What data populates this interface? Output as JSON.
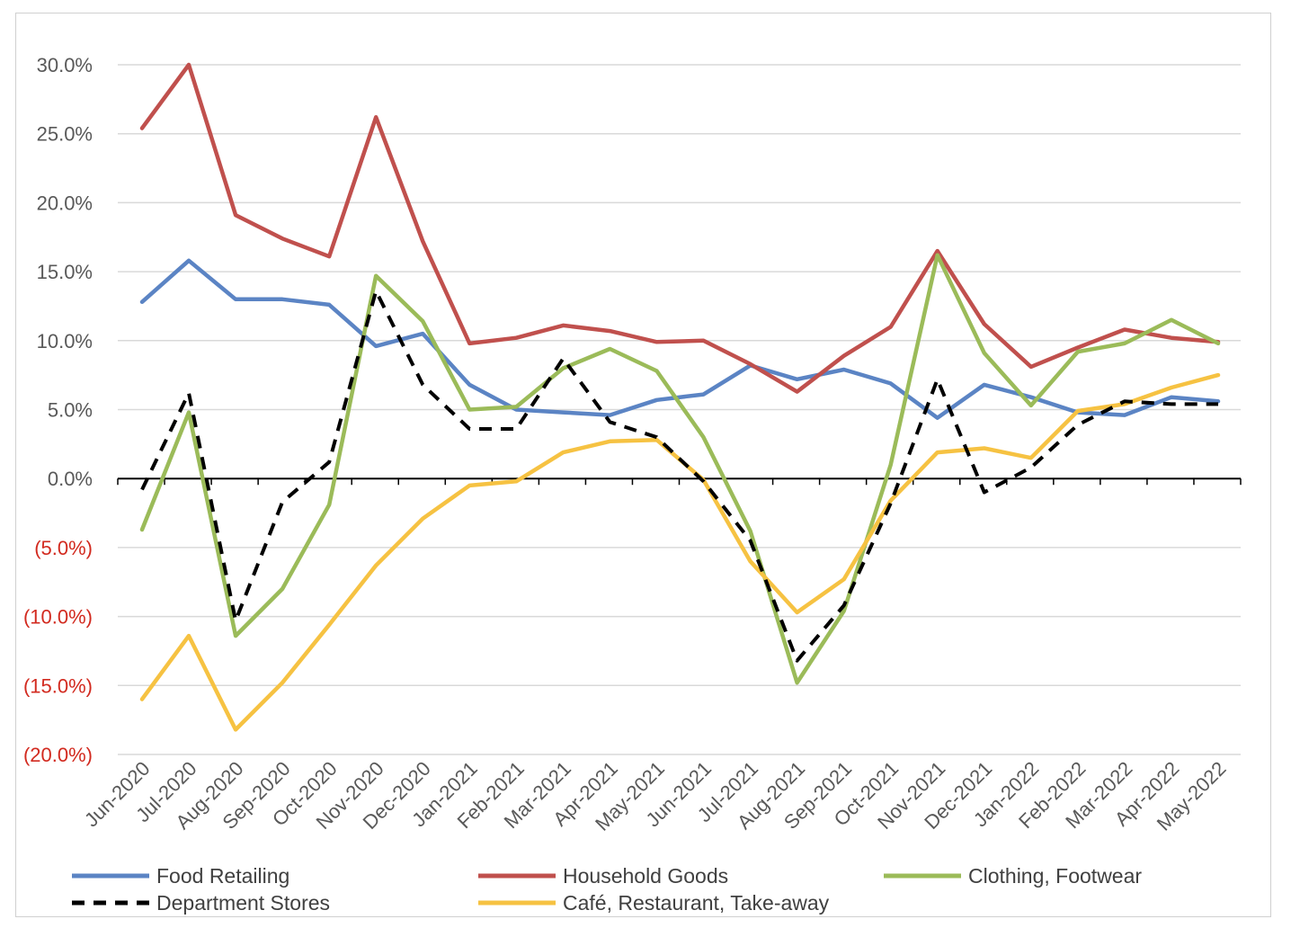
{
  "chart_data": {
    "type": "line",
    "title": "",
    "xlabel": "",
    "ylabel": "",
    "ylim": [
      -0.2,
      0.3
    ],
    "y_ticks": [
      0.3,
      0.25,
      0.2,
      0.15,
      0.1,
      0.05,
      0.0,
      -0.05,
      -0.1,
      -0.15,
      -0.2
    ],
    "y_tick_labels": [
      "30.0%",
      "25.0%",
      "20.0%",
      "15.0%",
      "10.0%",
      "5.0%",
      "0.0%",
      "(5.0%)",
      "(10.0%)",
      "(15.0%)",
      "(20.0%)"
    ],
    "negative_tick_color": "#d22a1f",
    "grid": true,
    "legend_position": "bottom",
    "categories": [
      "Jun-2020",
      "Jul-2020",
      "Aug-2020",
      "Sep-2020",
      "Oct-2020",
      "Nov-2020",
      "Dec-2020",
      "Jan-2021",
      "Feb-2021",
      "Mar-2021",
      "Apr-2021",
      "May-2021",
      "Jun-2021",
      "Jul-2021",
      "Aug-2021",
      "Sep-2021",
      "Oct-2021",
      "Nov-2021",
      "Dec-2021",
      "Jan-2022",
      "Feb-2022",
      "Mar-2022",
      "Apr-2022",
      "May-2022"
    ],
    "series": [
      {
        "name": "Food Retailing",
        "color": "#5b84c4",
        "dashed": false,
        "values": [
          0.128,
          0.158,
          0.13,
          0.13,
          0.126,
          0.096,
          0.105,
          0.068,
          0.05,
          0.048,
          0.046,
          0.057,
          0.061,
          0.082,
          0.072,
          0.079,
          0.069,
          0.044,
          0.068,
          0.059,
          0.048,
          0.046,
          0.059,
          0.056
        ]
      },
      {
        "name": "Household Goods",
        "color": "#c0504d",
        "dashed": false,
        "values": [
          0.254,
          0.3,
          0.191,
          0.174,
          0.161,
          0.262,
          0.172,
          0.098,
          0.102,
          0.111,
          0.107,
          0.099,
          0.1,
          0.083,
          0.063,
          0.089,
          0.11,
          0.165,
          0.112,
          0.081,
          0.095,
          0.108,
          0.102,
          0.099
        ]
      },
      {
        "name": "Clothing, Footwear",
        "color": "#9bbb59",
        "dashed": false,
        "values": [
          -0.037,
          0.048,
          -0.114,
          -0.08,
          -0.019,
          0.147,
          0.114,
          0.05,
          0.052,
          0.08,
          0.094,
          0.078,
          0.03,
          -0.038,
          -0.148,
          -0.096,
          0.01,
          0.162,
          0.091,
          0.053,
          0.092,
          0.098,
          0.115,
          0.098
        ]
      },
      {
        "name": "Department Stores",
        "color": "#000000",
        "dashed": true,
        "values": [
          -0.008,
          0.062,
          -0.103,
          -0.017,
          0.012,
          0.136,
          0.068,
          0.036,
          0.036,
          0.087,
          0.041,
          0.03,
          -0.002,
          -0.045,
          -0.132,
          -0.092,
          -0.018,
          0.072,
          -0.01,
          0.008,
          0.039,
          0.056,
          0.054,
          0.054
        ]
      },
      {
        "name": "Café, Restaurant, Take-away",
        "color": "#f6c242",
        "dashed": false,
        "values": [
          -0.16,
          -0.114,
          -0.182,
          -0.148,
          -0.106,
          -0.063,
          -0.029,
          -0.005,
          -0.002,
          0.019,
          0.027,
          0.028,
          -0.001,
          -0.06,
          -0.097,
          -0.073,
          -0.016,
          0.019,
          0.022,
          0.015,
          0.049,
          0.054,
          0.066,
          0.075
        ]
      }
    ]
  }
}
